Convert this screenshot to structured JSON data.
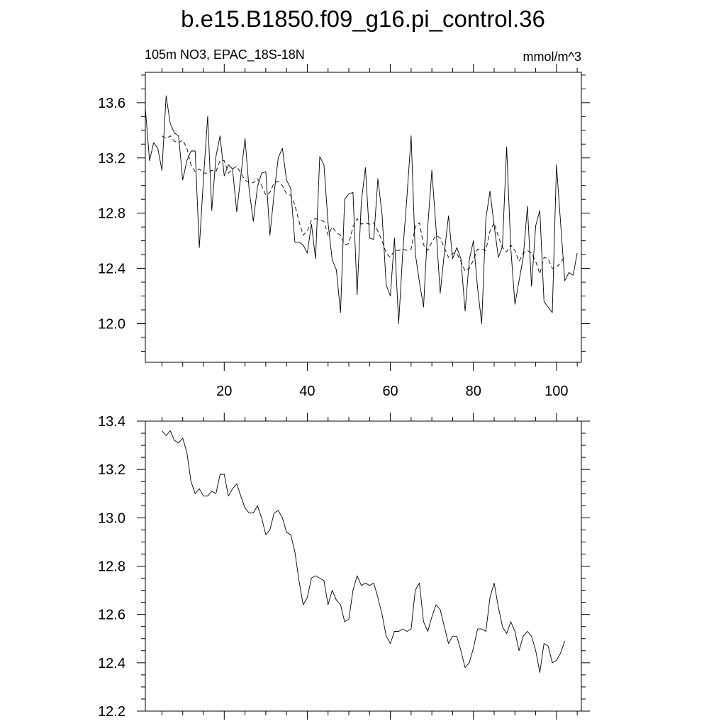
{
  "title": "b.e15.B1850.f09_g16.pi_control.36",
  "subtitle_left": "105m NO3, EPAC_18S-18N",
  "subtitle_right": "mmol/m^3",
  "chart_data": [
    {
      "type": "line",
      "panel": "top",
      "xlim": [
        1,
        106
      ],
      "ylim": [
        11.72,
        13.82
      ],
      "xticks": [
        20,
        40,
        60,
        80,
        100
      ],
      "xtick_labels": [
        "20",
        "40",
        "60",
        "80",
        "100"
      ],
      "yticks": [
        12.0,
        12.4,
        12.8,
        13.2,
        13.6
      ],
      "ytick_labels": [
        "12.0",
        "12.4",
        "12.8",
        "13.2",
        "13.6"
      ],
      "series": [
        {
          "style": "solid",
          "x": [
            1,
            2,
            3,
            4,
            5,
            6,
            7,
            8,
            9,
            10,
            11,
            12,
            13,
            14,
            15,
            16,
            17,
            18,
            19,
            20,
            21,
            22,
            23,
            24,
            25,
            26,
            27,
            28,
            29,
            30,
            31,
            32,
            33,
            34,
            35,
            36,
            37,
            38,
            39,
            40,
            41,
            42,
            43,
            44,
            45,
            46,
            47,
            48,
            49,
            50,
            51,
            52,
            53,
            54,
            55,
            56,
            57,
            58,
            59,
            60,
            61,
            62,
            63,
            64,
            65,
            66,
            67,
            68,
            69,
            70,
            71,
            72,
            73,
            74,
            75,
            76,
            77,
            78,
            79,
            80,
            81,
            82,
            83,
            84,
            85,
            86,
            87,
            88,
            89,
            90,
            91,
            92,
            93,
            94,
            95,
            96,
            97,
            98,
            99,
            100,
            101,
            102,
            103,
            104,
            105
          ],
          "y": [
            13.56,
            13.18,
            13.31,
            13.27,
            13.11,
            13.65,
            13.45,
            13.38,
            13.36,
            13.04,
            13.18,
            13.25,
            13.25,
            12.55,
            13.05,
            13.5,
            12.82,
            13.21,
            13.36,
            13.07,
            13.15,
            13.12,
            12.81,
            13.07,
            13.34,
            12.97,
            12.74,
            12.99,
            13.09,
            13.1,
            12.64,
            12.94,
            13.2,
            13.27,
            13.04,
            12.98,
            12.59,
            12.59,
            12.57,
            12.51,
            12.72,
            12.47,
            13.21,
            13.15,
            12.73,
            12.46,
            12.39,
            12.08,
            12.9,
            12.94,
            12.95,
            12.21,
            12.88,
            13.13,
            12.62,
            12.61,
            13.05,
            12.79,
            12.28,
            12.2,
            12.62,
            12.0,
            12.52,
            12.92,
            13.36,
            12.51,
            12.3,
            12.12,
            12.7,
            13.11,
            12.69,
            12.22,
            12.51,
            12.78,
            12.47,
            12.55,
            12.47,
            12.09,
            12.46,
            12.6,
            12.26,
            12.0,
            12.76,
            12.96,
            12.71,
            12.48,
            12.56,
            13.28,
            12.55,
            12.14,
            12.31,
            12.48,
            12.85,
            12.27,
            12.71,
            12.82,
            12.16,
            12.12,
            12.08,
            13.15,
            12.73,
            12.31,
            12.37,
            12.35,
            12.51
          ]
        },
        {
          "style": "dashed",
          "x": [
            5,
            6,
            7,
            8,
            9,
            10,
            11,
            12,
            13,
            14,
            15,
            16,
            17,
            18,
            19,
            20,
            21,
            22,
            23,
            24,
            25,
            26,
            27,
            28,
            29,
            30,
            31,
            32,
            33,
            34,
            35,
            36,
            37,
            38,
            39,
            40,
            41,
            42,
            43,
            44,
            45,
            46,
            47,
            48,
            49,
            50,
            51,
            52,
            53,
            54,
            55,
            56,
            57,
            58,
            59,
            60,
            61,
            62,
            63,
            64,
            65,
            66,
            67,
            68,
            69,
            70,
            71,
            72,
            73,
            74,
            75,
            76,
            77,
            78,
            79,
            80,
            81,
            82,
            83,
            84,
            85,
            86,
            87,
            88,
            89,
            90,
            91,
            92,
            93,
            94,
            95,
            96,
            97,
            98,
            99,
            100,
            101,
            102
          ],
          "y": [
            13.36,
            13.34,
            13.36,
            13.32,
            13.31,
            13.33,
            13.27,
            13.15,
            13.1,
            13.12,
            13.09,
            13.09,
            13.11,
            13.1,
            13.18,
            13.18,
            13.09,
            13.12,
            13.14,
            13.09,
            13.04,
            13.02,
            13.02,
            13.05,
            13.0,
            12.93,
            12.95,
            13.02,
            13.03,
            13.0,
            12.94,
            12.93,
            12.86,
            12.74,
            12.64,
            12.67,
            12.75,
            12.76,
            12.75,
            12.74,
            12.64,
            12.7,
            12.66,
            12.64,
            12.57,
            12.58,
            12.7,
            12.76,
            12.72,
            12.73,
            12.72,
            12.73,
            12.67,
            12.6,
            12.51,
            12.48,
            12.53,
            12.53,
            12.54,
            12.53,
            12.54,
            12.7,
            12.73,
            12.57,
            12.53,
            12.59,
            12.64,
            12.62,
            12.55,
            12.48,
            12.51,
            12.51,
            12.45,
            12.38,
            12.4,
            12.46,
            12.54,
            12.54,
            12.53,
            12.67,
            12.73,
            12.63,
            12.55,
            12.52,
            12.57,
            12.53,
            12.45,
            12.51,
            12.53,
            12.51,
            12.45,
            12.36,
            12.48,
            12.47,
            12.4,
            12.41,
            12.44,
            12.49
          ]
        }
      ]
    },
    {
      "type": "line",
      "panel": "bottom",
      "xlim": [
        1,
        106
      ],
      "ylim": [
        12.2,
        13.4
      ],
      "xticks": [
        20,
        40,
        60,
        80,
        100
      ],
      "yticks": [
        12.2,
        12.4,
        12.6,
        12.8,
        13.0,
        13.2,
        13.4
      ],
      "ytick_labels": [
        "12.2",
        "12.4",
        "12.6",
        "12.8",
        "13.0",
        "13.2",
        "13.4"
      ],
      "series": [
        {
          "style": "solid",
          "x": [
            5,
            6,
            7,
            8,
            9,
            10,
            11,
            12,
            13,
            14,
            15,
            16,
            17,
            18,
            19,
            20,
            21,
            22,
            23,
            24,
            25,
            26,
            27,
            28,
            29,
            30,
            31,
            32,
            33,
            34,
            35,
            36,
            37,
            38,
            39,
            40,
            41,
            42,
            43,
            44,
            45,
            46,
            47,
            48,
            49,
            50,
            51,
            52,
            53,
            54,
            55,
            56,
            57,
            58,
            59,
            60,
            61,
            62,
            63,
            64,
            65,
            66,
            67,
            68,
            69,
            70,
            71,
            72,
            73,
            74,
            75,
            76,
            77,
            78,
            79,
            80,
            81,
            82,
            83,
            84,
            85,
            86,
            87,
            88,
            89,
            90,
            91,
            92,
            93,
            94,
            95,
            96,
            97,
            98,
            99,
            100,
            101,
            102
          ],
          "y": [
            13.36,
            13.34,
            13.36,
            13.32,
            13.31,
            13.33,
            13.27,
            13.15,
            13.1,
            13.12,
            13.09,
            13.09,
            13.11,
            13.1,
            13.18,
            13.18,
            13.09,
            13.12,
            13.14,
            13.09,
            13.04,
            13.02,
            13.02,
            13.05,
            13.0,
            12.93,
            12.95,
            13.02,
            13.03,
            13.0,
            12.94,
            12.93,
            12.86,
            12.74,
            12.64,
            12.67,
            12.75,
            12.76,
            12.75,
            12.74,
            12.64,
            12.7,
            12.66,
            12.64,
            12.57,
            12.58,
            12.7,
            12.76,
            12.72,
            12.73,
            12.72,
            12.73,
            12.67,
            12.6,
            12.51,
            12.48,
            12.53,
            12.53,
            12.54,
            12.53,
            12.54,
            12.7,
            12.73,
            12.57,
            12.53,
            12.59,
            12.64,
            12.62,
            12.55,
            12.48,
            12.51,
            12.51,
            12.45,
            12.38,
            12.4,
            12.46,
            12.54,
            12.54,
            12.53,
            12.67,
            12.73,
            12.63,
            12.55,
            12.52,
            12.57,
            12.53,
            12.45,
            12.51,
            12.53,
            12.51,
            12.45,
            12.36,
            12.48,
            12.47,
            12.4,
            12.41,
            12.44,
            12.49
          ]
        }
      ]
    }
  ]
}
